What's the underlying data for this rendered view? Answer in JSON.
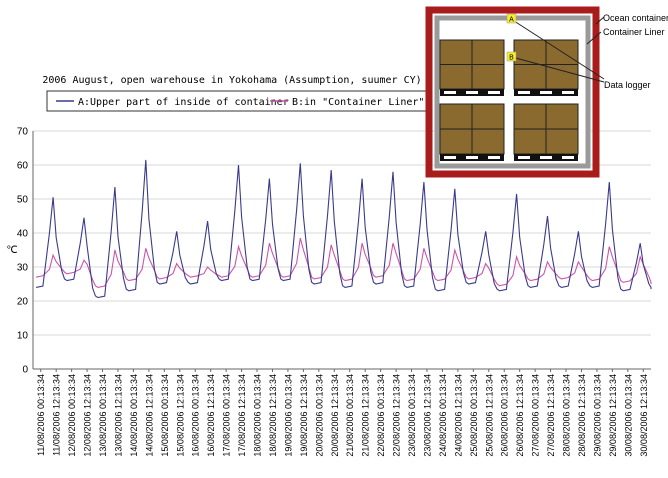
{
  "chart_data": {
    "type": "line",
    "title": "2006 August, open warehouse in Yokohama (Assumption, suumer CY)",
    "ylabel": "℃",
    "ylim": [
      0,
      70
    ],
    "yticks": [
      0,
      10,
      20,
      30,
      40,
      50,
      60,
      70
    ],
    "grid": true,
    "legend_position": "top-left",
    "x_tick_labels": [
      "11/08/2006 00:13:34",
      "11/08/2006 12:13:34",
      "12/08/2006 00:13:34",
      "12/08/2006 12:13:34",
      "13/08/2006 00:13:34",
      "13/08/2006 12:13:34",
      "14/08/2006 00:13:34",
      "14/08/2006 12:13:34",
      "15/08/2006 00:13:34",
      "15/08/2006 12:13:34",
      "16/08/2006 00:13:34",
      "16/08/2006 12:13:34",
      "17/08/2006 00:13:34",
      "17/08/2006 12:13:34",
      "18/08/2006 00:13:34",
      "18/08/2006 12:13:34",
      "19/08/2006 00:13:34",
      "19/08/2006 12:13:34",
      "20/08/2006 00:13:34",
      "20/08/2006 12:13:34",
      "21/08/2006 00:13:34",
      "21/08/2006 12:13:34",
      "22/08/2006 00:13:34",
      "22/08/2006 12:13:34",
      "23/08/2006 00:13:34",
      "23/08/2006 12:13:34",
      "24/08/2006 00:13:34",
      "24/08/2006 12:13:34",
      "25/08/2006 00:13:34",
      "25/08/2006 12:13:34",
      "26/08/2006 00:13:34",
      "26/08/2006 12:13:34",
      "27/08/2006 00:13:34",
      "27/08/2006 12:13:34",
      "28/08/2006 00:13:34",
      "28/08/2006 12:13:34",
      "29/08/2006 00:13:34",
      "29/08/2006 12:13:34",
      "30/08/2006 00:13:34",
      "30/08/2006 12:13:34"
    ],
    "series": [
      {
        "name": "A:Upper part of inside of container",
        "color": "#3a3a8c",
        "peaks": [
          50.5,
          44.5,
          53.5,
          61.5,
          40.5,
          43.5,
          60,
          56,
          60.5,
          58.5,
          56,
          58,
          55,
          53,
          40.5,
          51.5,
          45,
          40.5,
          55,
          37
        ],
        "troughs": [
          24,
          26,
          21,
          23,
          25,
          25,
          26,
          26,
          26,
          25,
          24,
          25,
          24,
          23,
          25,
          23,
          24,
          24,
          24,
          23,
          23.5
        ]
      },
      {
        "name": "B:in \"Container Liner\"",
        "color": "#cc55aa",
        "peaks": [
          33.5,
          32,
          35,
          35.5,
          31,
          30,
          36,
          37,
          38.5,
          36.5,
          37,
          37,
          35.5,
          35,
          31,
          33,
          31.5,
          31.5,
          36,
          33
        ],
        "troughs": [
          27,
          28,
          24,
          26,
          26.5,
          27,
          27,
          27,
          27,
          26.5,
          26,
          27,
          26,
          26,
          26.5,
          24.5,
          26,
          26.5,
          26,
          25.5,
          25
        ]
      }
    ]
  },
  "inset": {
    "labels": {
      "ocean_container": "Ocean container",
      "container_liner": "Container Liner",
      "data_logger": "Data logger",
      "marker_a": "A",
      "marker_b": "B"
    },
    "colors": {
      "ocean_frame": "#a81c1c",
      "liner": "#9a9a9a",
      "box": "#8a6a2e",
      "pallet": "#111111",
      "marker": "#f6ec2a"
    }
  }
}
